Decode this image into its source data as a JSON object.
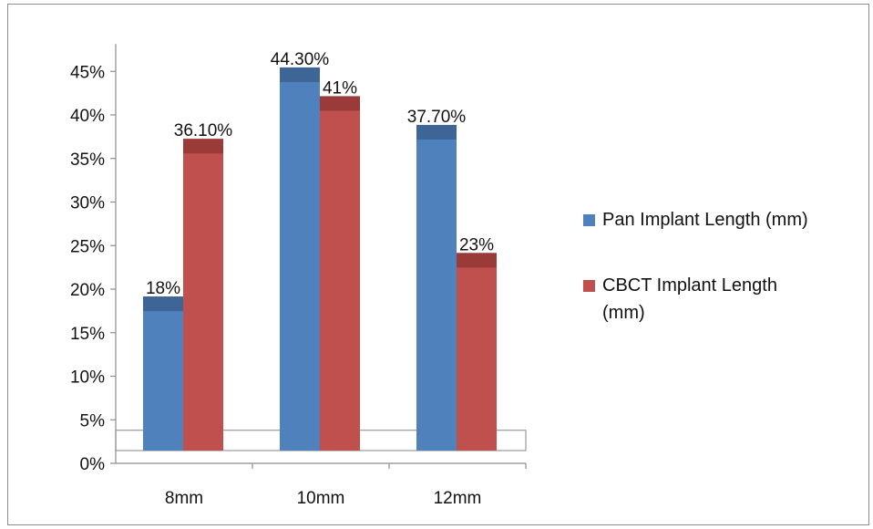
{
  "chart_data": {
    "type": "bar",
    "categories": [
      "8mm",
      "10mm",
      "12mm"
    ],
    "series": [
      {
        "name": "Pan Implant Length (mm)",
        "values": [
          18,
          44.3,
          37.7
        ],
        "labels": [
          "18%",
          "44.30%",
          "37.70%"
        ],
        "color": "#4f81bd",
        "cap_color": "#3d6696"
      },
      {
        "name": "CBCT Implant Length (mm)",
        "values": [
          36.1,
          41,
          23
        ],
        "labels": [
          "36.10%",
          "41%",
          "23%"
        ],
        "color": "#c0504d",
        "cap_color": "#9b3b39"
      }
    ],
    "y_ticks": [
      "0%",
      "5%",
      "10%",
      "15%",
      "20%",
      "25%",
      "30%",
      "35%",
      "40%",
      "45%"
    ],
    "ylim": [
      0,
      45
    ],
    "grid": false,
    "legend_position": "right",
    "title": "",
    "xlabel": "",
    "ylabel": ""
  }
}
